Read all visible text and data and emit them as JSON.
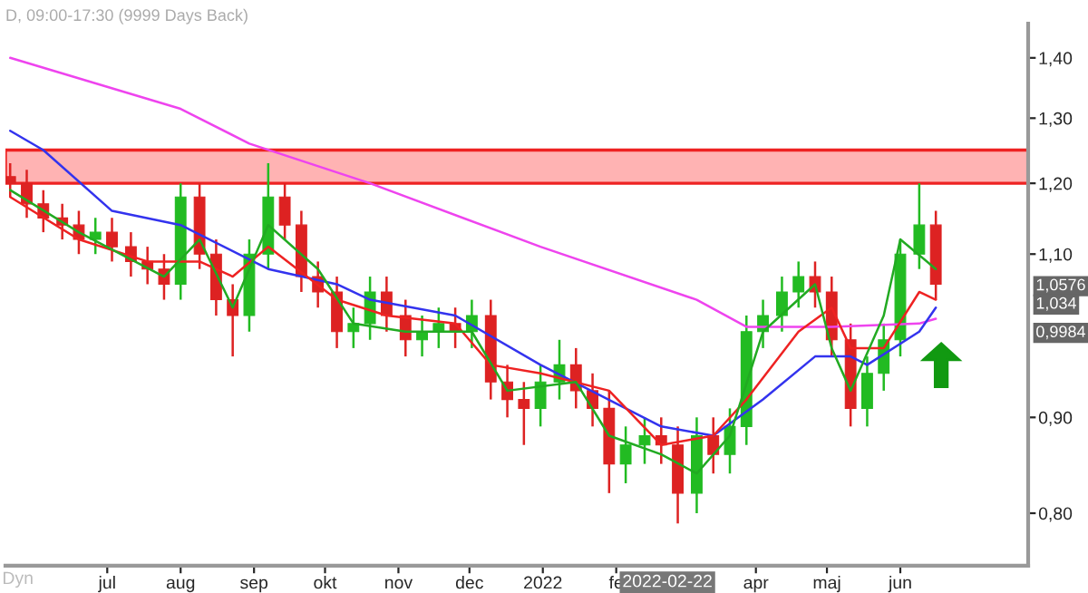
{
  "chart_data": {
    "type": "candlestick",
    "title": "D, 09:00-17:30 (9999 Days Back)",
    "x": [
      "2021-05-21",
      "2021-05-28",
      "2021-06-04",
      "2021-06-12",
      "2021-06-19",
      "2021-06-26",
      "2021-07-03",
      "2021-07-11",
      "2021-07-18",
      "2021-07-25",
      "2021-08-01",
      "2021-08-09",
      "2021-08-16",
      "2021-08-23",
      "2021-08-30",
      "2021-09-07",
      "2021-09-14",
      "2021-09-21",
      "2021-09-28",
      "2021-10-06",
      "2021-10-13",
      "2021-10-20",
      "2021-10-27",
      "2021-11-04",
      "2021-11-11",
      "2021-11-18",
      "2021-11-25",
      "2021-12-02",
      "2021-12-10",
      "2021-12-17",
      "2021-12-24",
      "2021-12-31",
      "2022-01-08",
      "2022-01-15",
      "2022-01-22",
      "2022-01-29",
      "2022-02-05",
      "2022-02-13",
      "2022-02-20",
      "2022-02-27",
      "2022-03-07",
      "2022-03-14",
      "2022-03-21",
      "2022-03-28",
      "2022-04-04",
      "2022-04-12",
      "2022-04-19",
      "2022-04-26",
      "2022-05-03",
      "2022-05-11",
      "2022-05-18",
      "2022-05-25",
      "2022-06-01",
      "2022-06-09",
      "2022-06-16"
    ],
    "ohlc": [
      [
        1.21,
        1.23,
        1.18,
        1.2
      ],
      [
        1.2,
        1.22,
        1.15,
        1.17
      ],
      [
        1.17,
        1.19,
        1.13,
        1.15
      ],
      [
        1.15,
        1.17,
        1.12,
        1.14
      ],
      [
        1.14,
        1.16,
        1.1,
        1.12
      ],
      [
        1.12,
        1.15,
        1.1,
        1.13
      ],
      [
        1.13,
        1.15,
        1.09,
        1.11
      ],
      [
        1.11,
        1.13,
        1.07,
        1.09
      ],
      [
        1.09,
        1.11,
        1.06,
        1.08
      ],
      [
        1.08,
        1.1,
        1.04,
        1.06
      ],
      [
        1.06,
        1.2,
        1.04,
        1.18
      ],
      [
        1.18,
        1.2,
        1.08,
        1.1
      ],
      [
        1.1,
        1.12,
        1.02,
        1.04
      ],
      [
        1.04,
        1.06,
        0.97,
        1.02
      ],
      [
        1.02,
        1.12,
        1.0,
        1.1
      ],
      [
        1.1,
        1.23,
        1.08,
        1.18
      ],
      [
        1.18,
        1.2,
        1.12,
        1.14
      ],
      [
        1.14,
        1.16,
        1.05,
        1.07
      ],
      [
        1.07,
        1.09,
        1.03,
        1.05
      ],
      [
        1.05,
        1.07,
        0.98,
        1.0
      ],
      [
        1.0,
        1.03,
        0.98,
        1.01
      ],
      [
        1.01,
        1.07,
        0.99,
        1.05
      ],
      [
        1.05,
        1.07,
        1.0,
        1.02
      ],
      [
        1.02,
        1.04,
        0.97,
        0.99
      ],
      [
        0.99,
        1.02,
        0.97,
        1.0
      ],
      [
        1.0,
        1.03,
        0.98,
        1.01
      ],
      [
        1.01,
        1.03,
        0.98,
        1.0
      ],
      [
        1.0,
        1.04,
        0.98,
        1.02
      ],
      [
        1.02,
        1.04,
        0.92,
        0.94
      ],
      [
        0.94,
        0.96,
        0.9,
        0.92
      ],
      [
        0.92,
        0.94,
        0.87,
        0.91
      ],
      [
        0.91,
        0.96,
        0.89,
        0.94
      ],
      [
        0.94,
        0.99,
        0.92,
        0.96
      ],
      [
        0.96,
        0.98,
        0.91,
        0.93
      ],
      [
        0.93,
        0.95,
        0.89,
        0.91
      ],
      [
        0.91,
        0.93,
        0.82,
        0.85
      ],
      [
        0.85,
        0.89,
        0.83,
        0.87
      ],
      [
        0.87,
        0.9,
        0.85,
        0.88
      ],
      [
        0.88,
        0.9,
        0.85,
        0.87
      ],
      [
        0.87,
        0.89,
        0.79,
        0.82
      ],
      [
        0.82,
        0.9,
        0.8,
        0.88
      ],
      [
        0.88,
        0.9,
        0.84,
        0.86
      ],
      [
        0.86,
        0.91,
        0.84,
        0.89
      ],
      [
        0.89,
        1.02,
        0.87,
        1.0
      ],
      [
        1.0,
        1.04,
        0.98,
        1.02
      ],
      [
        1.02,
        1.07,
        1.0,
        1.05
      ],
      [
        1.05,
        1.09,
        1.03,
        1.07
      ],
      [
        1.07,
        1.09,
        1.03,
        1.05
      ],
      [
        1.05,
        1.07,
        0.97,
        0.99
      ],
      [
        0.99,
        1.01,
        0.89,
        0.91
      ],
      [
        0.91,
        0.97,
        0.89,
        0.95
      ],
      [
        0.95,
        1.01,
        0.93,
        0.99
      ],
      [
        0.99,
        1.12,
        0.97,
        1.1
      ],
      [
        1.1,
        1.2,
        1.08,
        1.14
      ],
      [
        1.14,
        1.16,
        1.04,
        1.06
      ]
    ],
    "colors": [
      "#dd2222",
      "#dd2222",
      "#dd2222",
      "#dd2222",
      "#dd2222",
      "#22bb22",
      "#dd2222",
      "#dd2222",
      "#dd2222",
      "#dd2222",
      "#22bb22",
      "#dd2222",
      "#dd2222",
      "#dd2222",
      "#22bb22",
      "#22bb22",
      "#dd2222",
      "#dd2222",
      "#dd2222",
      "#dd2222",
      "#22bb22",
      "#22bb22",
      "#dd2222",
      "#dd2222",
      "#22bb22",
      "#22bb22",
      "#dd2222",
      "#22bb22",
      "#dd2222",
      "#dd2222",
      "#dd2222",
      "#22bb22",
      "#22bb22",
      "#dd2222",
      "#dd2222",
      "#dd2222",
      "#22bb22",
      "#22bb22",
      "#dd2222",
      "#dd2222",
      "#22bb22",
      "#dd2222",
      "#22bb22",
      "#22bb22",
      "#22bb22",
      "#22bb22",
      "#22bb22",
      "#dd2222",
      "#dd2222",
      "#dd2222",
      "#22bb22",
      "#22bb22",
      "#22bb22",
      "#22bb22",
      "#dd2222"
    ],
    "series": [
      {
        "type": "line",
        "color": "#ee44ee",
        "x": [
          "2021-05-21",
          "2021-08-01",
          "2021-08-30",
          "2021-10-20",
          "2021-12-31",
          "2022-03-07",
          "2022-03-28",
          "2022-05-03",
          "2022-06-09",
          "2022-06-16"
        ],
        "values": [
          1.4,
          1.315,
          1.26,
          1.2,
          1.11,
          1.04,
          1.006,
          1.006,
          1.01,
          1.016
        ]
      },
      {
        "type": "line",
        "color": "#3333ee",
        "x": [
          "2021-05-21",
          "2021-06-04",
          "2021-07-03",
          "2021-08-01",
          "2021-09-07",
          "2021-10-06",
          "2021-10-20",
          "2021-11-25",
          "2021-12-31",
          "2022-02-20",
          "2022-03-14",
          "2022-04-04",
          "2022-04-26",
          "2022-05-11",
          "2022-05-18",
          "2022-06-09",
          "2022-06-16"
        ],
        "values": [
          1.28,
          1.25,
          1.16,
          1.14,
          1.08,
          1.06,
          1.04,
          1.02,
          0.96,
          0.89,
          0.88,
          0.92,
          0.97,
          0.97,
          0.96,
          1.0,
          1.03
        ]
      },
      {
        "type": "line",
        "color": "#ee2222",
        "x": [
          "2021-05-21",
          "2021-06-19",
          "2021-07-18",
          "2021-08-09",
          "2021-08-23",
          "2021-09-07",
          "2021-10-06",
          "2021-10-27",
          "2021-11-25",
          "2021-12-10",
          "2021-12-31",
          "2022-01-29",
          "2022-02-20",
          "2022-03-14",
          "2022-03-28",
          "2022-04-19",
          "2022-05-03",
          "2022-05-11",
          "2022-05-25",
          "2022-06-09",
          "2022-06-16"
        ],
        "values": [
          1.18,
          1.12,
          1.09,
          1.09,
          1.07,
          1.11,
          1.04,
          1.02,
          1.01,
          0.96,
          0.95,
          0.93,
          0.87,
          0.88,
          0.92,
          1.0,
          1.03,
          0.98,
          0.98,
          1.05,
          1.04
        ]
      },
      {
        "type": "line",
        "color": "#22aa22",
        "x": [
          "2021-05-21",
          "2021-06-19",
          "2021-07-25",
          "2021-08-09",
          "2021-08-23",
          "2021-09-07",
          "2021-09-28",
          "2021-10-13",
          "2021-11-04",
          "2021-12-02",
          "2021-12-17",
          "2022-01-15",
          "2022-01-29",
          "2022-02-20",
          "2022-03-07",
          "2022-03-21",
          "2022-04-04",
          "2022-04-26",
          "2022-05-03",
          "2022-05-11",
          "2022-05-25",
          "2022-06-01",
          "2022-06-16"
        ],
        "values": [
          1.19,
          1.13,
          1.07,
          1.12,
          1.03,
          1.14,
          1.08,
          1.01,
          1.0,
          1.0,
          0.93,
          0.94,
          0.88,
          0.86,
          0.84,
          0.88,
          1.0,
          1.06,
          0.98,
          0.93,
          1.02,
          1.12,
          1.08
        ]
      }
    ],
    "bands": [
      {
        "axis": "y",
        "from": 1.2,
        "to": 1.25,
        "color": "#ffb3b3"
      }
    ],
    "log": true,
    "xlim": [
      "2021-05-19",
      "2022-07-25"
    ],
    "xticks": [
      {
        "value": "2021-07-01",
        "label": "jul"
      },
      {
        "value": "2021-08-01",
        "label": "aug"
      },
      {
        "value": "2021-09-01",
        "label": "sep"
      },
      {
        "value": "2021-10-01",
        "label": "okt"
      },
      {
        "value": "2021-11-01",
        "label": "nov"
      },
      {
        "value": "2021-12-01",
        "label": "dec"
      },
      {
        "value": "2022-01-01",
        "label": "2022"
      },
      {
        "value": "2022-02-01",
        "label": "fe"
      },
      {
        "value": "2022-04-01",
        "label": "apr"
      },
      {
        "value": "2022-05-01",
        "label": "maj"
      },
      {
        "value": "2022-06-01",
        "label": "jun"
      }
    ],
    "ylim": [
      0.75,
      1.46
    ],
    "yticks": [
      {
        "value": 0.8,
        "label": "0,80"
      },
      {
        "value": 0.9,
        "label": "0,90"
      },
      {
        "value": 1.1,
        "label": "1,10"
      },
      {
        "value": 1.2,
        "label": "1,20"
      },
      {
        "value": 1.3,
        "label": "1,30"
      },
      {
        "value": 1.4,
        "label": "1,40"
      }
    ],
    "grid": false,
    "annotations": [
      "Dyn",
      "2022-02-22",
      {
        "text": "1,0576",
        "y": 1.0576
      },
      {
        "text": "1,034",
        "y": 1.034
      },
      {
        "text": "0,9984",
        "y": 0.9984
      }
    ]
  }
}
